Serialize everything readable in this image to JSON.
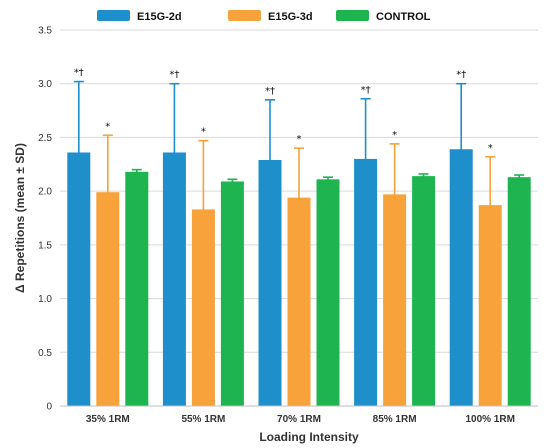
{
  "chart_data": {
    "type": "bar",
    "xlabel": "Loading Intensity",
    "ylabel": "Δ Repetitions (mean ± SD)",
    "ylim": [
      0,
      3.5
    ],
    "yticks": [
      "0",
      "0.5",
      "1.0",
      "1.5",
      "2.0",
      "2.5",
      "3.0",
      "3.5"
    ],
    "grid": true,
    "legend_position": "top",
    "categories": [
      "35% 1RM",
      "55% 1RM",
      "70% 1RM",
      "85% 1RM",
      "100% 1RM"
    ],
    "series": [
      {
        "name": "E15G-2d",
        "color": "#1f8fcb",
        "values": [
          2.36,
          2.36,
          2.29,
          2.3,
          2.39
        ],
        "sd": [
          0.66,
          0.64,
          0.56,
          0.56,
          0.61
        ],
        "annotations": [
          "*†",
          "*†",
          "*†",
          "*†",
          "*†"
        ]
      },
      {
        "name": "E15G-3d",
        "color": "#f7a23b",
        "values": [
          1.99,
          1.83,
          1.94,
          1.97,
          1.87
        ],
        "sd": [
          0.53,
          0.64,
          0.46,
          0.47,
          0.45
        ],
        "annotations": [
          "*",
          "*",
          "*",
          "*",
          "*"
        ]
      },
      {
        "name": "CONTROL",
        "color": "#1eb450",
        "values": [
          2.18,
          2.09,
          2.11,
          2.14,
          2.13
        ],
        "sd": [
          0.02,
          0.02,
          0.02,
          0.02,
          0.02
        ],
        "annotations": [
          "",
          "",
          "",
          "",
          ""
        ]
      }
    ]
  }
}
